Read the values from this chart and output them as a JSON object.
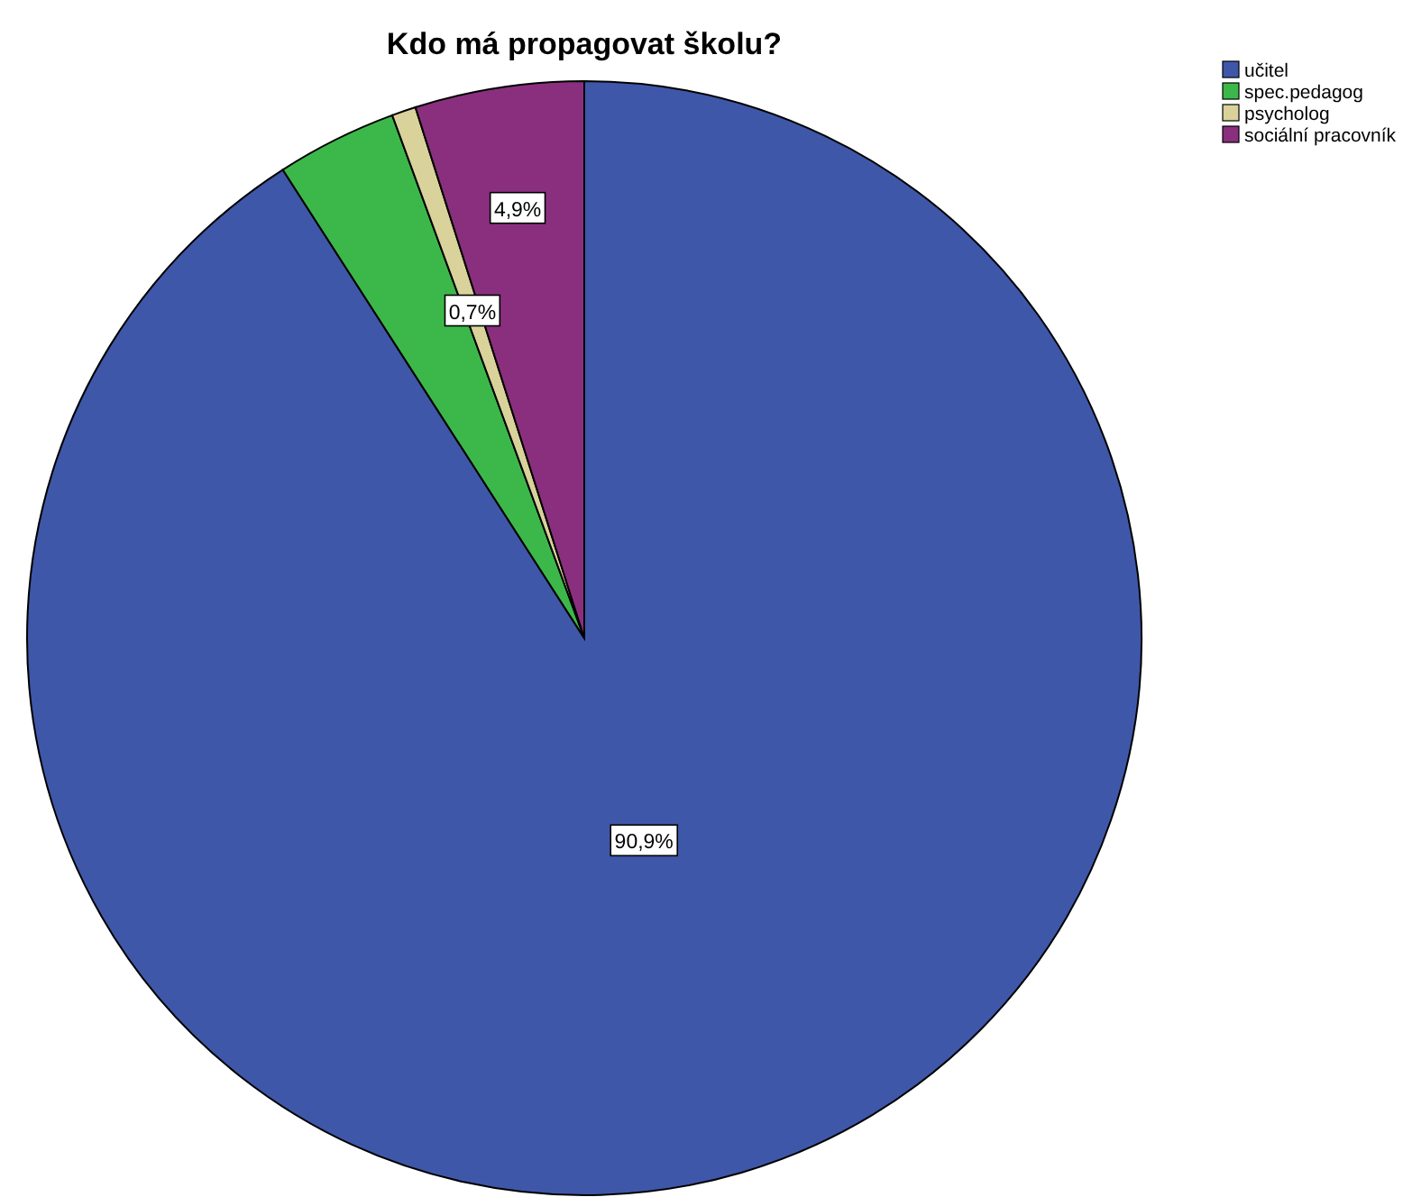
{
  "chart_data": {
    "type": "pie",
    "title": "Kdo má propagovat školu?",
    "categories": [
      "učitel",
      "spec.pedagog",
      "psycholog",
      "sociální pracovník"
    ],
    "values": [
      90.9,
      3.5,
      0.7,
      4.9
    ],
    "colors": [
      "#3f57a8",
      "#3cb84a",
      "#d9d29a",
      "#8a2f7e"
    ],
    "value_labels": [
      "90,9%",
      null,
      "0,7%",
      "4,9%"
    ],
    "legend": "top right"
  }
}
